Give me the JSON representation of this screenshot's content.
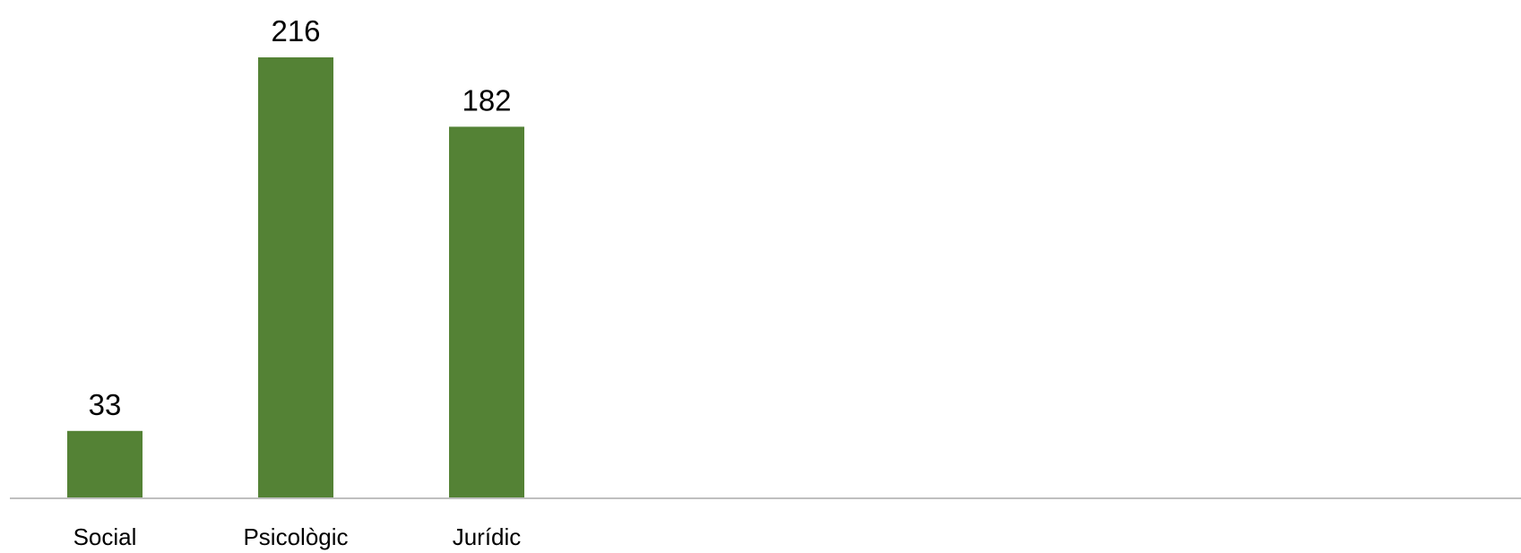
{
  "chart_data": {
    "type": "bar",
    "categories": [
      "Social",
      "Psicològic",
      "Jurídic"
    ],
    "values": [
      33,
      216,
      182
    ],
    "data_labels": [
      "33",
      "216",
      "182"
    ],
    "title": "",
    "xlabel": "",
    "ylabel": "",
    "ylim": [
      0,
      216
    ],
    "grid": false,
    "legend": "none",
    "colors": {
      "bar": "#548235",
      "axis": "#bfbfbf",
      "text": "#000000",
      "background": "#ffffff"
    }
  }
}
